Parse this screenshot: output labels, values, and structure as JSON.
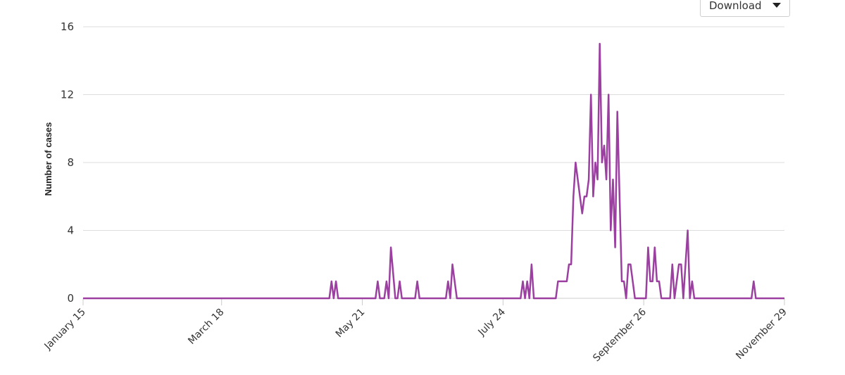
{
  "download": {
    "label": "Download",
    "icon": "caret-down-icon"
  },
  "colors": {
    "line": "#9b3fa0",
    "grid": "#dddddd",
    "axis": "#cccccc"
  },
  "chart_data": {
    "type": "line",
    "title": "",
    "xlabel": "",
    "ylabel": "Number of cases",
    "ylim": [
      0,
      16
    ],
    "yticks": [
      0,
      4,
      8,
      12,
      16
    ],
    "xlim": [
      "2020-01-15",
      "2020-11-29"
    ],
    "xticks": [
      {
        "date": "2020-01-15",
        "label": "January 15"
      },
      {
        "date": "2020-03-18",
        "label": "March 18"
      },
      {
        "date": "2020-05-21",
        "label": "May 21"
      },
      {
        "date": "2020-07-24",
        "label": "July 24"
      },
      {
        "date": "2020-09-26",
        "label": "September 26"
      },
      {
        "date": "2020-11-29",
        "label": "November 29"
      }
    ],
    "grid": true,
    "series": [
      {
        "points": [
          [
            "2020-01-15",
            0
          ],
          [
            "2020-05-06",
            0
          ],
          [
            "2020-05-07",
            1
          ],
          [
            "2020-05-08",
            0
          ],
          [
            "2020-05-09",
            1
          ],
          [
            "2020-05-10",
            0
          ],
          [
            "2020-05-27",
            0
          ],
          [
            "2020-05-28",
            1
          ],
          [
            "2020-05-29",
            0
          ],
          [
            "2020-05-31",
            0
          ],
          [
            "2020-06-01",
            1
          ],
          [
            "2020-06-02",
            0
          ],
          [
            "2020-06-03",
            3
          ],
          [
            "2020-06-05",
            0
          ],
          [
            "2020-06-06",
            0
          ],
          [
            "2020-06-07",
            1
          ],
          [
            "2020-06-08",
            0
          ],
          [
            "2020-06-14",
            0
          ],
          [
            "2020-06-15",
            1
          ],
          [
            "2020-06-16",
            0
          ],
          [
            "2020-06-28",
            0
          ],
          [
            "2020-06-29",
            1
          ],
          [
            "2020-06-30",
            0
          ],
          [
            "2020-07-01",
            2
          ],
          [
            "2020-07-03",
            0
          ],
          [
            "2020-08-01",
            0
          ],
          [
            "2020-08-02",
            1
          ],
          [
            "2020-08-03",
            0
          ],
          [
            "2020-08-04",
            1
          ],
          [
            "2020-08-05",
            0
          ],
          [
            "2020-08-06",
            2
          ],
          [
            "2020-08-07",
            0
          ],
          [
            "2020-08-17",
            0
          ],
          [
            "2020-08-18",
            1
          ],
          [
            "2020-08-22",
            1
          ],
          [
            "2020-08-23",
            2
          ],
          [
            "2020-08-24",
            2
          ],
          [
            "2020-08-25",
            6
          ],
          [
            "2020-08-26",
            8
          ],
          [
            "2020-08-28",
            6
          ],
          [
            "2020-08-29",
            5
          ],
          [
            "2020-08-30",
            6
          ],
          [
            "2020-08-31",
            6
          ],
          [
            "2020-09-01",
            7
          ],
          [
            "2020-09-02",
            12
          ],
          [
            "2020-09-03",
            6
          ],
          [
            "2020-09-04",
            8
          ],
          [
            "2020-09-05",
            7
          ],
          [
            "2020-09-06",
            15
          ],
          [
            "2020-09-07",
            8
          ],
          [
            "2020-09-08",
            9
          ],
          [
            "2020-09-09",
            7
          ],
          [
            "2020-09-10",
            12
          ],
          [
            "2020-09-11",
            4
          ],
          [
            "2020-09-12",
            7
          ],
          [
            "2020-09-13",
            3
          ],
          [
            "2020-09-14",
            11
          ],
          [
            "2020-09-16",
            1
          ],
          [
            "2020-09-17",
            1
          ],
          [
            "2020-09-18",
            0
          ],
          [
            "2020-09-19",
            2
          ],
          [
            "2020-09-20",
            2
          ],
          [
            "2020-09-22",
            0
          ],
          [
            "2020-09-27",
            0
          ],
          [
            "2020-09-28",
            3
          ],
          [
            "2020-09-29",
            1
          ],
          [
            "2020-09-30",
            1
          ],
          [
            "2020-10-01",
            3
          ],
          [
            "2020-10-02",
            1
          ],
          [
            "2020-10-03",
            1
          ],
          [
            "2020-10-04",
            0
          ],
          [
            "2020-10-08",
            0
          ],
          [
            "2020-10-09",
            2
          ],
          [
            "2020-10-10",
            0
          ],
          [
            "2020-10-12",
            2
          ],
          [
            "2020-10-13",
            2
          ],
          [
            "2020-10-14",
            0
          ],
          [
            "2020-10-16",
            4
          ],
          [
            "2020-10-17",
            0
          ],
          [
            "2020-10-18",
            1
          ],
          [
            "2020-10-19",
            0
          ],
          [
            "2020-11-14",
            0
          ],
          [
            "2020-11-15",
            1
          ],
          [
            "2020-11-16",
            0
          ],
          [
            "2020-11-29",
            0
          ]
        ]
      }
    ]
  }
}
